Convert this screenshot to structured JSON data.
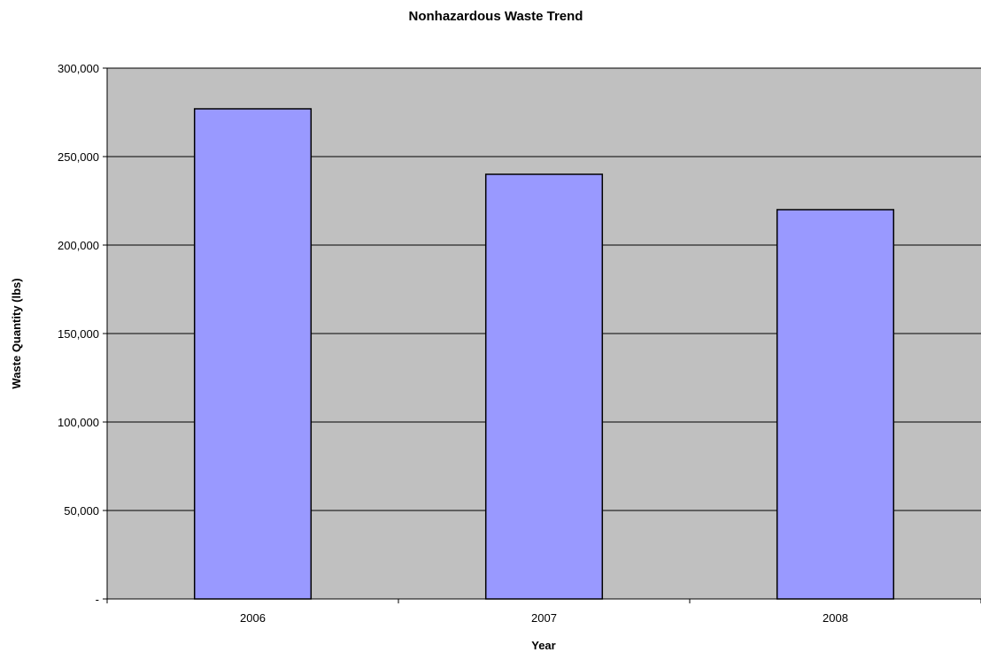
{
  "chart_data": {
    "type": "bar",
    "title": "Nonhazardous Waste Trend",
    "xlabel": "Year",
    "ylabel": "Waste Quantity (lbs)",
    "categories": [
      "2006",
      "2007",
      "2008"
    ],
    "values": [
      277000,
      240000,
      220000
    ],
    "ylim": [
      0,
      300000
    ],
    "ytick_values": [
      0,
      50000,
      100000,
      150000,
      200000,
      250000,
      300000
    ],
    "ytick_labels": [
      "-",
      "50,000",
      "100,000",
      "150,000",
      "200,000",
      "250,000",
      "300,000"
    ],
    "grid": "horizontal",
    "legend": "none",
    "colors": {
      "bar_fill": "#9999FF",
      "bar_stroke": "#000000",
      "plot_background": "#C0C0C0",
      "gridline": "#000000"
    }
  }
}
